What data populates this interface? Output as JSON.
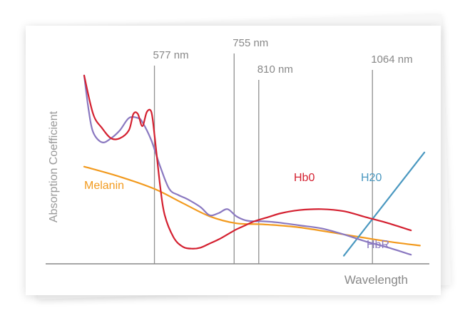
{
  "chart_data": {
    "type": "line",
    "xlabel": "Wavelength",
    "ylabel": "Absorption Coefficient",
    "grid": false,
    "wavelength_markers": [
      {
        "label": "577 nm",
        "value": 577
      },
      {
        "label": "755 nm",
        "value": 755
      },
      {
        "label": "810 nm",
        "value": 810
      },
      {
        "label": "1064 nm",
        "value": 1064
      }
    ],
    "series": [
      {
        "name": "Hb0",
        "color": "#d42030",
        "x": [
          420,
          440,
          460,
          480,
          500,
          520,
          530,
          540,
          550,
          560,
          570,
          577,
          590,
          600,
          620,
          640,
          660,
          680,
          700,
          720,
          740,
          760,
          780,
          800,
          830,
          860,
          900,
          950,
          1000,
          1050,
          1100,
          1150
        ],
        "y": [
          0.93,
          0.74,
          0.67,
          0.62,
          0.62,
          0.66,
          0.74,
          0.74,
          0.68,
          0.75,
          0.75,
          0.64,
          0.38,
          0.24,
          0.13,
          0.085,
          0.075,
          0.08,
          0.1,
          0.12,
          0.145,
          0.17,
          0.19,
          0.21,
          0.23,
          0.25,
          0.265,
          0.27,
          0.26,
          0.23,
          0.2,
          0.165
        ]
      },
      {
        "name": "HbR",
        "color": "#8a78c0",
        "x": [
          420,
          430,
          440,
          460,
          480,
          500,
          520,
          540,
          550,
          570,
          590,
          610,
          630,
          650,
          680,
          700,
          720,
          740,
          760,
          780,
          800,
          820,
          850,
          900,
          950,
          1000,
          1050,
          1100,
          1150
        ],
        "y": [
          0.93,
          0.76,
          0.65,
          0.6,
          0.62,
          0.66,
          0.72,
          0.72,
          0.7,
          0.61,
          0.48,
          0.37,
          0.34,
          0.32,
          0.28,
          0.24,
          0.25,
          0.27,
          0.235,
          0.215,
          0.21,
          0.21,
          0.205,
          0.19,
          0.175,
          0.145,
          0.11,
          0.08,
          0.045
        ]
      },
      {
        "name": "Melanin",
        "color": "#f29a1e",
        "x": [
          420,
          500,
          577,
          640,
          700,
          760,
          820,
          900,
          1000,
          1100,
          1170
        ],
        "y": [
          0.48,
          0.43,
          0.37,
          0.3,
          0.235,
          0.2,
          0.195,
          0.18,
          0.145,
          0.11,
          0.09
        ]
      },
      {
        "name": "H20",
        "color": "#4a98c0",
        "x": [
          1000,
          1180
        ],
        "y": [
          0.04,
          0.55
        ]
      }
    ]
  }
}
